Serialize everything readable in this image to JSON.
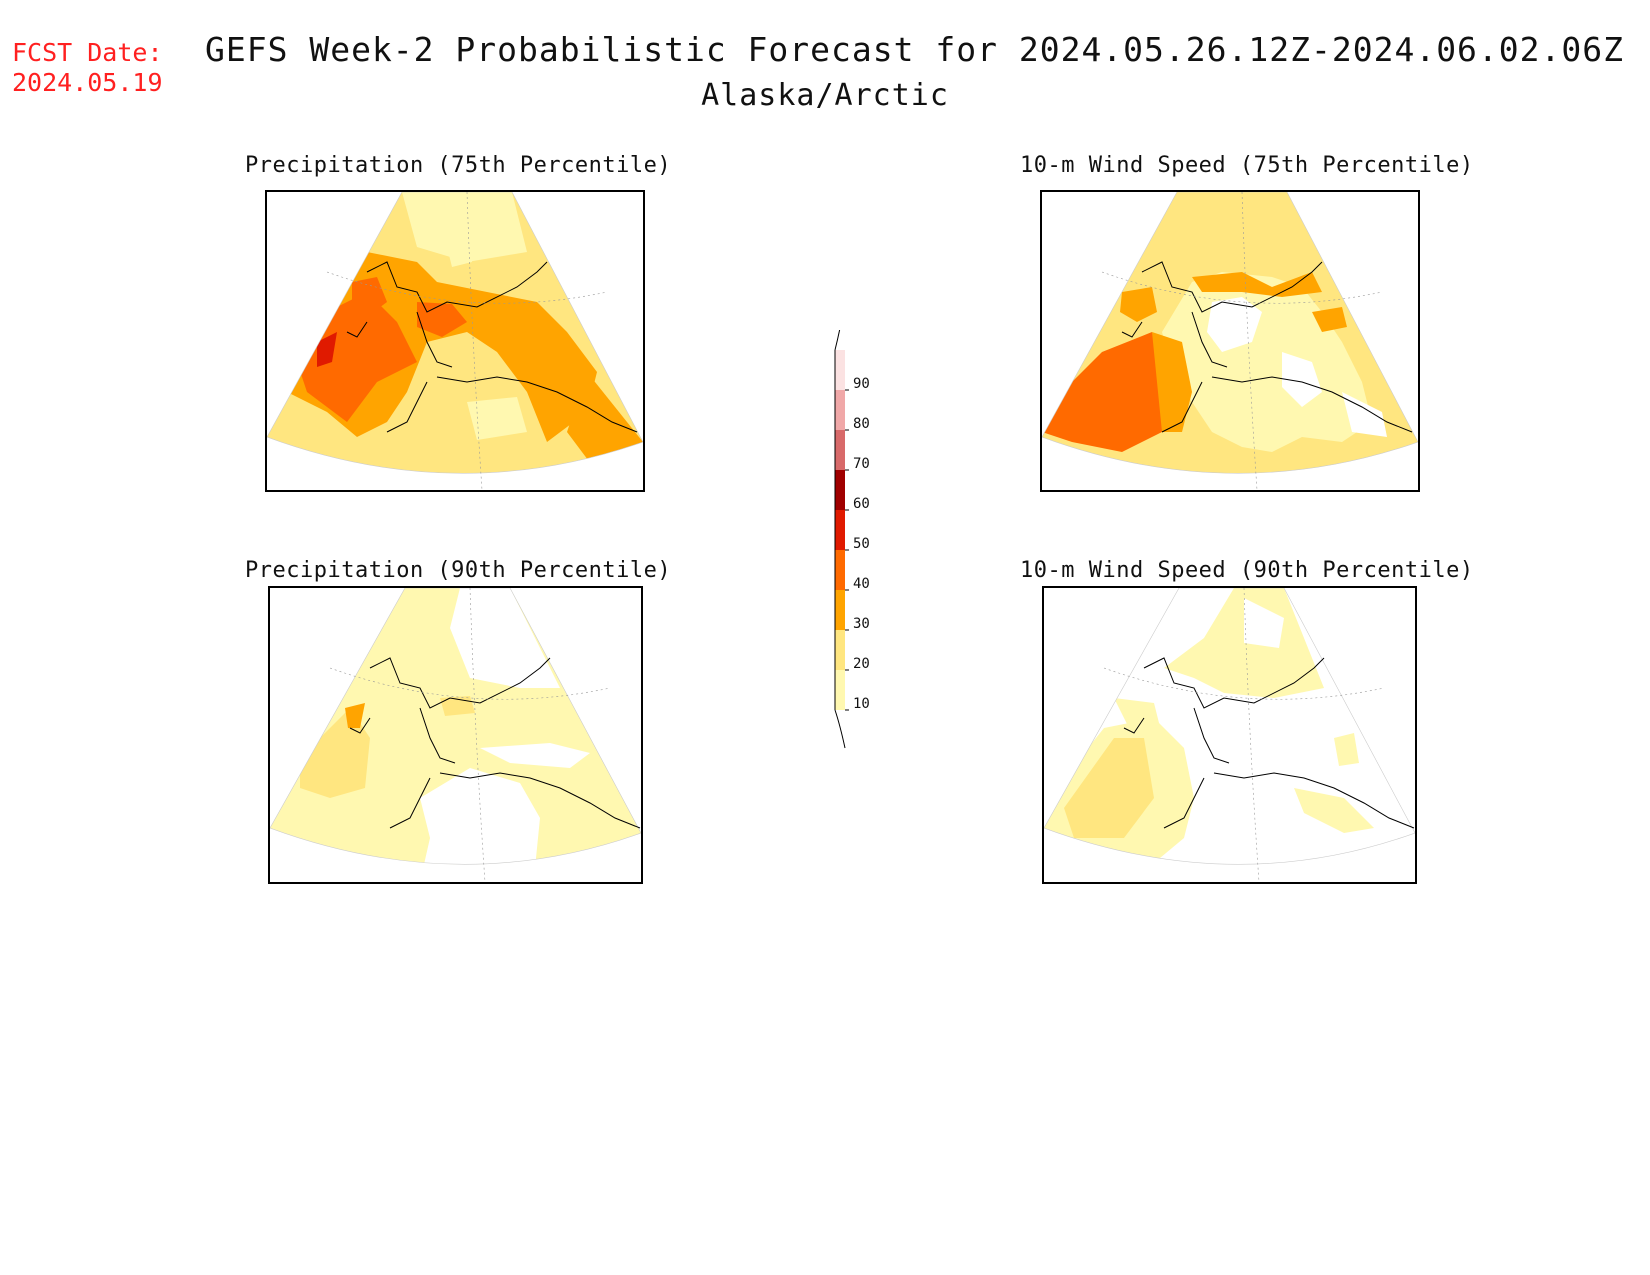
{
  "header": {
    "fcst_label": "FCST Date:",
    "fcst_date": "2024.05.19",
    "title": "GEFS Week-2 Probabilistic Forecast for 2024.05.26.12Z-2024.06.02.06Z",
    "subtitle": "Alaska/Arctic"
  },
  "panels": [
    {
      "title": "Precipitation (75th Percentile)"
    },
    {
      "title": "10-m Wind Speed (75th Percentile)"
    },
    {
      "title": "Precipitation (90th Percentile)"
    },
    {
      "title": "10-m Wind Speed (90th Percentile)"
    }
  ],
  "colorbar": {
    "levels": [
      "10",
      "20",
      "30",
      "40",
      "50",
      "60",
      "70",
      "80",
      "90"
    ],
    "colors": [
      "#fff8b0",
      "#ffe680",
      "#ffa400",
      "#ff6a00",
      "#e01a00",
      "#a00000",
      "#d86a6a",
      "#f0a8a8",
      "#fbe2e2"
    ]
  }
}
